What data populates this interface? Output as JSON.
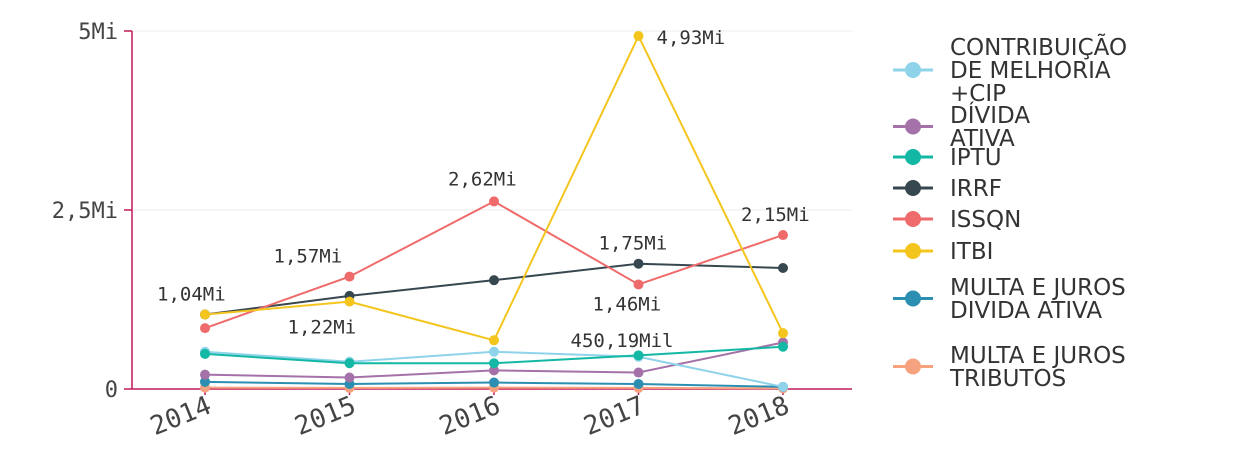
{
  "chart_data": {
    "type": "line",
    "title": "",
    "xlabel": "",
    "ylabel": "",
    "categories": [
      "2014",
      "2015",
      "2016",
      "2017",
      "2018"
    ],
    "ylim": [
      0,
      5000000
    ],
    "y_ticks": [
      {
        "value": 0,
        "label": "0"
      },
      {
        "value": 2500000,
        "label": "2,5Mi"
      },
      {
        "value": 5000000,
        "label": "5Mi"
      }
    ],
    "grid": true,
    "legend_position": "right",
    "series": [
      {
        "name": "CONTRIBUIÇÃO DE MELHORIA +CIP",
        "color": "#8fd3ea",
        "values": [
          520000,
          380000,
          520000,
          450190,
          30000
        ]
      },
      {
        "name": "DÍVIDA ATIVA",
        "color": "#a472a8",
        "values": [
          200000,
          160000,
          260000,
          230000,
          650000
        ]
      },
      {
        "name": "IPTU",
        "color": "#13b8a4",
        "values": [
          490000,
          360000,
          360000,
          470000,
          590000
        ]
      },
      {
        "name": "IRRF",
        "color": "#37474f",
        "values": [
          1040000,
          1300000,
          1520000,
          1750000,
          1690000
        ]
      },
      {
        "name": "ISSQN",
        "color": "#ef6b6b",
        "values": [
          850000,
          1570000,
          2620000,
          1460000,
          2150000
        ]
      },
      {
        "name": "ITBI",
        "color": "#f4c51d",
        "values": [
          1040000,
          1220000,
          680000,
          4930000,
          780000
        ]
      },
      {
        "name": "MULTA E JUROS DIVIDA ATIVA",
        "color": "#2c8fb2",
        "values": [
          100000,
          70000,
          90000,
          70000,
          30000
        ]
      },
      {
        "name": "MULTA E JUROS TRIBUTOS",
        "color": "#f6a27f",
        "values": [
          20000,
          15000,
          20000,
          15000,
          10000
        ]
      }
    ],
    "data_labels": [
      {
        "series": 3,
        "index": 0,
        "text": "1,04Mi"
      },
      {
        "series": 4,
        "index": 1,
        "text": "1,57Mi"
      },
      {
        "series": 5,
        "index": 1,
        "text": "1,22Mi"
      },
      {
        "series": 4,
        "index": 2,
        "text": "2,62Mi"
      },
      {
        "series": 5,
        "index": 3,
        "text": "4,93Mi"
      },
      {
        "series": 3,
        "index": 3,
        "text": "1,75Mi"
      },
      {
        "series": 4,
        "index": 3,
        "text": "1,46Mi"
      },
      {
        "series": 0,
        "index": 3,
        "text": "450,19Mil"
      },
      {
        "series": 4,
        "index": 4,
        "text": "2,15Mi"
      }
    ],
    "legend": [
      {
        "series": 0,
        "lines": [
          "CONTRIBUIÇÃO",
          "DE MELHORIA",
          "+CIP"
        ]
      },
      {
        "series": 1,
        "lines": [
          "DÍVIDA",
          "ATIVA"
        ]
      },
      {
        "series": 2,
        "lines": [
          "IPTU"
        ]
      },
      {
        "series": 3,
        "lines": [
          "IRRF"
        ]
      },
      {
        "series": 4,
        "lines": [
          "ISSQN"
        ]
      },
      {
        "series": 5,
        "lines": [
          "ITBI"
        ]
      },
      {
        "series": 6,
        "lines": [
          "MULTA E JUROS",
          "DIVIDA ATIVA"
        ]
      },
      {
        "series": 7,
        "lines": [
          "MULTA E JUROS",
          "TRIBUTOS"
        ]
      }
    ]
  }
}
